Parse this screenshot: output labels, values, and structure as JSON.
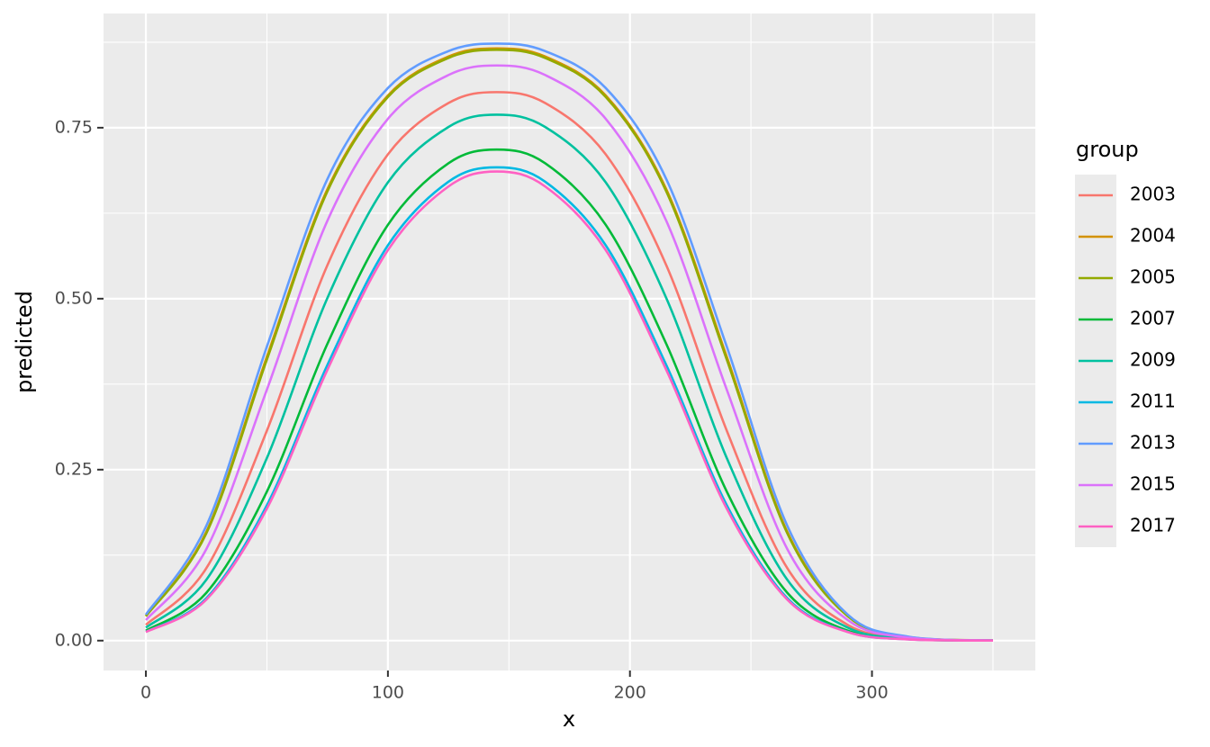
{
  "chart_data": {
    "type": "line",
    "xlabel": "x",
    "ylabel": "predicted",
    "legend_title": "group",
    "legend": "right",
    "grid": true,
    "xlim": [
      -17.5,
      367.5
    ],
    "ylim": [
      -0.0437,
      0.917
    ],
    "xticks": [
      0,
      100,
      200,
      300
    ],
    "yticks": [
      {
        "value": 0,
        "label": "0.00"
      },
      {
        "value": 0.25,
        "label": "0.25"
      },
      {
        "value": 0.5,
        "label": "0.50"
      },
      {
        "value": 0.75,
        "label": "0.75"
      }
    ],
    "xminor": [
      50,
      150,
      250,
      350
    ],
    "yminor": [
      0.125,
      0.375,
      0.625,
      0.875
    ],
    "x": [
      0,
      25,
      50,
      75,
      100,
      125,
      145,
      165,
      190,
      215,
      240,
      265,
      290,
      315,
      350
    ],
    "series": [
      {
        "name": "2003",
        "color": "#F8766D",
        "values": [
          0.023,
          0.106,
          0.307,
          0.549,
          0.711,
          0.786,
          0.802,
          0.786,
          0.711,
          0.549,
          0.307,
          0.106,
          0.023,
          0.0034,
          0.0001
        ]
      },
      {
        "name": "2004",
        "color": "#D39200",
        "values": [
          0.036,
          0.159,
          0.415,
          0.66,
          0.797,
          0.854,
          0.866,
          0.854,
          0.797,
          0.66,
          0.415,
          0.159,
          0.036,
          0.0054,
          0.0002
        ]
      },
      {
        "name": "2005",
        "color": "#93AA00",
        "values": [
          0.0355,
          0.157,
          0.411,
          0.657,
          0.795,
          0.852,
          0.864,
          0.852,
          0.795,
          0.657,
          0.411,
          0.157,
          0.0355,
          0.0053,
          0.0002
        ]
      },
      {
        "name": "2007",
        "color": "#00BA38",
        "values": [
          0.0145,
          0.07,
          0.218,
          0.434,
          0.608,
          0.698,
          0.718,
          0.698,
          0.608,
          0.434,
          0.218,
          0.07,
          0.0145,
          0.0021,
          0.0001
        ]
      },
      {
        "name": "2009",
        "color": "#00C19F",
        "values": [
          0.019,
          0.089,
          0.267,
          0.501,
          0.67,
          0.751,
          0.769,
          0.751,
          0.67,
          0.501,
          0.267,
          0.089,
          0.019,
          0.0028,
          0.0001
        ]
      },
      {
        "name": "2011",
        "color": "#00B9E3",
        "values": [
          0.0128,
          0.062,
          0.198,
          0.403,
          0.578,
          0.671,
          0.692,
          0.671,
          0.578,
          0.403,
          0.198,
          0.062,
          0.0128,
          0.0019,
          0.0001
        ]
      },
      {
        "name": "2013",
        "color": "#619CFF",
        "values": [
          0.038,
          0.168,
          0.43,
          0.675,
          0.808,
          0.862,
          0.873,
          0.862,
          0.808,
          0.675,
          0.43,
          0.168,
          0.038,
          0.0058,
          0.0002
        ]
      },
      {
        "name": "2015",
        "color": "#DB72FB",
        "values": [
          0.03,
          0.134,
          0.367,
          0.614,
          0.763,
          0.827,
          0.841,
          0.827,
          0.763,
          0.614,
          0.367,
          0.134,
          0.03,
          0.0044,
          0.0002
        ]
      },
      {
        "name": "2017",
        "color": "#FF61C3",
        "values": [
          0.0125,
          0.06,
          0.193,
          0.396,
          0.571,
          0.664,
          0.686,
          0.664,
          0.571,
          0.396,
          0.193,
          0.06,
          0.0125,
          0.0018,
          0.0001
        ]
      }
    ]
  }
}
